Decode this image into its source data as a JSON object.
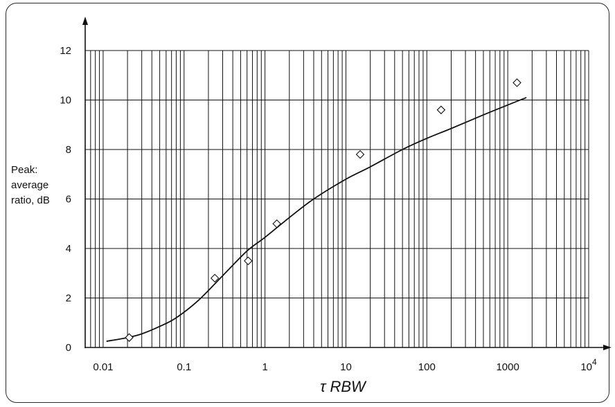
{
  "chart_data": {
    "type": "scatter",
    "title": "",
    "xlabel": "τ RBW",
    "ylabel": [
      "Peak:",
      "average",
      "ratio, dB"
    ],
    "xscale": "log",
    "xlim": [
      0.006,
      10000
    ],
    "ylim": [
      0,
      12
    ],
    "grid": true,
    "x_ticks": [
      {
        "value": 0.01,
        "label": "0.01",
        "sup": ""
      },
      {
        "value": 0.1,
        "label": "0.1",
        "sup": ""
      },
      {
        "value": 1,
        "label": "1",
        "sup": ""
      },
      {
        "value": 10,
        "label": "10",
        "sup": ""
      },
      {
        "value": 100,
        "label": "100",
        "sup": ""
      },
      {
        "value": 1000,
        "label": "1000",
        "sup": ""
      },
      {
        "value": 10000,
        "label": "10",
        "sup": "4"
      }
    ],
    "y_ticks": [
      0,
      2,
      4,
      6,
      8,
      10,
      12
    ],
    "series": [
      {
        "kind": "line",
        "x": [
          0.011,
          0.02,
          0.03,
          0.05,
          0.08,
          0.15,
          0.3,
          0.6,
          1,
          2,
          4,
          10,
          20,
          50,
          100,
          200,
          500,
          1000,
          1700
        ],
        "y": [
          0.25,
          0.4,
          0.55,
          0.85,
          1.2,
          1.9,
          2.9,
          3.9,
          4.45,
          5.25,
          6.0,
          6.8,
          7.3,
          8.0,
          8.45,
          8.85,
          9.4,
          9.8,
          10.1
        ]
      },
      {
        "kind": "markers",
        "marker": "diamond",
        "x": [
          0.021,
          0.24,
          0.62,
          1.4,
          15,
          150,
          1300
        ],
        "y": [
          0.4,
          2.8,
          3.5,
          5.0,
          7.8,
          9.6,
          10.7
        ]
      }
    ]
  }
}
